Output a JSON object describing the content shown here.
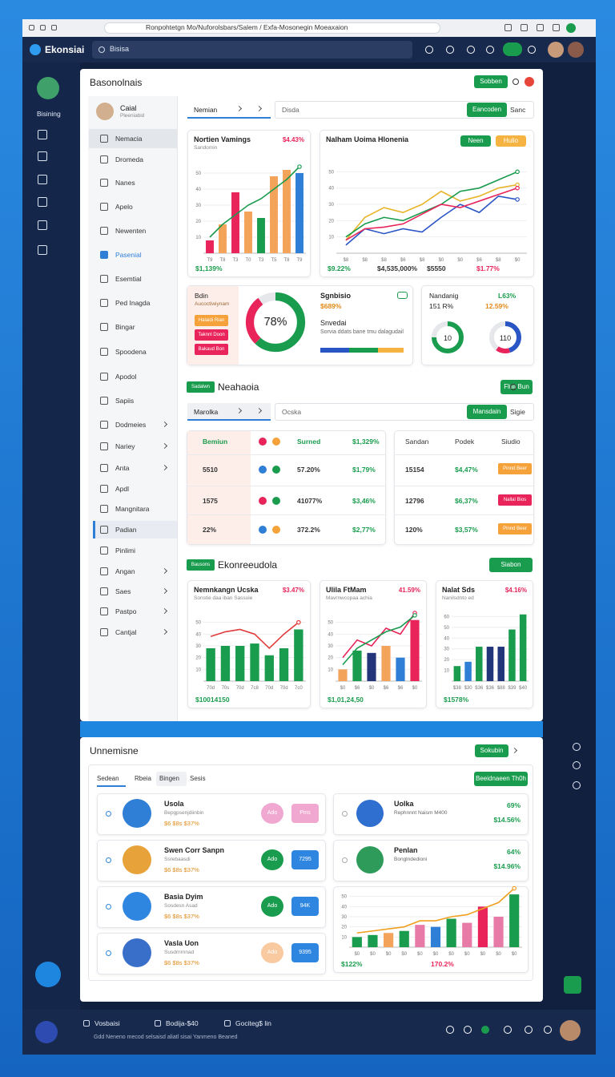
{
  "browser": {
    "url": "Ronpohtetgn Mo/Nuforolsbars/Salem / Exfa-Mosonegin Moeaxaion"
  },
  "app": {
    "logo": "Ekonsiai",
    "search": "Bisisa"
  },
  "sidebar": {
    "label": "Bisining"
  },
  "panel": {
    "title": "Basonolnais",
    "button": "Sobben",
    "user": {
      "name": "Caial",
      "role": "Pleeniabid"
    },
    "nav": [
      "Nemacia",
      "Dromeda",
      "Nanes",
      "Apelo",
      "Newenten",
      "Pasenial",
      "Esemtial",
      "Ped Inagda",
      "Bingar",
      "Spoodena",
      "Apodol",
      "Sapiis",
      "Dodmeies",
      "Nariey",
      "Anta",
      "Apdl",
      "Mangnitara",
      "Padian",
      "Pinlimi",
      "Angan",
      "Saes",
      "Pastpo",
      "Cantjal"
    ],
    "toolbar": {
      "select": "Nemian",
      "search": "Disda",
      "button": "Eancoden",
      "link": "Sanc"
    },
    "stats": {
      "title": "Bdin",
      "subtitle": "Aucoctiwiynam",
      "buttons": [
        "Halaidi Rian",
        "Taknnl Doon",
        "Bakaud Bon"
      ],
      "name": "Sgnbisio",
      "value": "$689%",
      "heading": "Snvedai",
      "text": "Sorvia ddats bane tmu dalagudail",
      "side_title": "Nandanig",
      "side_value": "L63%",
      "side_left": "151 R%",
      "side_right": "12.59%"
    },
    "section2": {
      "badge": "Sadalwn",
      "title": "Neahaoia",
      "button": "Fluit Bun",
      "select": "Marolka",
      "search": "Ocska",
      "action": "Mansdain",
      "link": "Sigie"
    },
    "table_left": {
      "header": [
        "Bemiun",
        "Surned",
        "$1,329%"
      ],
      "rows": [
        [
          "5510",
          "57.20%",
          "$1,79%"
        ],
        [
          "1575",
          "41077%",
          "$3,46%"
        ],
        [
          "22%",
          "372.2%",
          "$2,77%"
        ]
      ]
    },
    "table_right": {
      "header": [
        "Sandan",
        "Podek",
        "Siudio"
      ],
      "rows": [
        [
          "15154",
          "$4,47%",
          "Pinnd Beer"
        ],
        [
          "12796",
          "$6,37%",
          "Nallal Bios"
        ],
        [
          "120%",
          "$3,57%",
          "Pinnd Beer"
        ]
      ]
    },
    "section3": {
      "badge": "Bausons",
      "title": "Ekonreeudola",
      "button": "Siabon"
    }
  },
  "panel2": {
    "title": "Unnemisne",
    "button": "Sokubin",
    "tabs": [
      "Sedean",
      "Rbeia",
      "Bingen",
      "Sesis"
    ],
    "action": "Beeidnaeen Th0h",
    "items": [
      {
        "name": "Usola",
        "sub": "Bepgpsenjdiinbin",
        "price": "$6 $8s $37%",
        "b1": "Ado",
        "b2": "Pins"
      },
      {
        "name": "Swen Corr Sanpn",
        "sub": "Ssrebaasdi",
        "price": "$6 $8s $37%",
        "b1": "Ado",
        "b2": "7295"
      },
      {
        "name": "Basia Dyim",
        "sub": "Sosdesn Asad",
        "price": "$6 $8s $37%",
        "b1": "Ado",
        "b2": "94K"
      },
      {
        "name": "Vasla Uon",
        "sub": "Susdrnrnnad",
        "price": "$6 $8s $37%",
        "b1": "Ado",
        "b2": "9395"
      }
    ],
    "people": [
      {
        "name": "Uolka",
        "sub": "Rephnnnt Naism M400",
        "pct": "69%",
        "val": "$14.56%"
      },
      {
        "name": "Penlan",
        "sub": "Bonglndedioni",
        "pct": "64%",
        "val": "$14.96%"
      }
    ]
  },
  "footer": {
    "items": [
      "Vosbaisi",
      "Bodija-$40",
      "Gociteg$ lin"
    ],
    "text": "Gdd Neneno mecod selsaisd aliatl sisai Yanmeno Beaned"
  },
  "chart_data": [
    {
      "type": "bar",
      "title": "Nortien Vamings",
      "subtitle": "Sandomin",
      "badge": "$4.43%",
      "footer": [
        "$1,139%"
      ],
      "categories": [
        "T9",
        "T8",
        "T3",
        "T0",
        "T3",
        "T5",
        "T8",
        "T9"
      ],
      "ylim": [
        0,
        60
      ],
      "yticks": [
        10,
        20,
        30,
        40,
        50
      ],
      "grid": true,
      "series": [
        {
          "type": "bar",
          "colors": [
            "#e8245a",
            "#f4a35a",
            "#e8245a",
            "#f4a35a",
            "#1a9c4e",
            "#f4a35a",
            "#f4a35a",
            "#2f7fd6"
          ],
          "values": [
            8,
            18,
            38,
            26,
            22,
            48,
            52,
            50
          ]
        },
        {
          "type": "line",
          "color": "#1a9c4e",
          "values": [
            10,
            18,
            24,
            30,
            34,
            40,
            46,
            54
          ]
        }
      ]
    },
    {
      "type": "line",
      "title": "Nalham Uoima Hlonenia",
      "buttons": [
        "Neen",
        "Hulio"
      ],
      "footer": [
        "$9.22%",
        "$4,535,000%",
        "$5550",
        "$1.77%"
      ],
      "categories": [
        "$8",
        "$8",
        "$8",
        "$6",
        "$8",
        "$0",
        "$0",
        "$6",
        "$8",
        "$0"
      ],
      "ylim": [
        0,
        60
      ],
      "yticks": [
        10,
        20,
        30,
        40,
        50
      ],
      "grid": true,
      "series": [
        {
          "type": "line",
          "color": "#2a55c4",
          "values": [
            5,
            15,
            12,
            15,
            13,
            22,
            30,
            25,
            35,
            33
          ]
        },
        {
          "type": "line",
          "color": "#e8b42a",
          "values": [
            8,
            22,
            28,
            25,
            30,
            38,
            32,
            35,
            40,
            42
          ]
        },
        {
          "type": "line",
          "color": "#1a9c4e",
          "values": [
            10,
            18,
            22,
            20,
            25,
            30,
            38,
            40,
            45,
            50
          ]
        },
        {
          "type": "line",
          "color": "#e8245a",
          "values": [
            8,
            15,
            16,
            18,
            24,
            30,
            28,
            32,
            36,
            40
          ]
        }
      ]
    },
    {
      "type": "donut",
      "label": "78%",
      "values": [
        62,
        28,
        10
      ],
      "colors": [
        "#1a9c4e",
        "#e8245a",
        "#e5e7eb"
      ]
    },
    {
      "type": "donut",
      "label": "10",
      "values": [
        75,
        25
      ],
      "colors": [
        "#1a9c4e",
        "#e5e7eb"
      ]
    },
    {
      "type": "donut",
      "label": "110",
      "values": [
        45,
        15,
        40
      ],
      "colors": [
        "#2a55c4",
        "#e8245a",
        "#e5e7eb"
      ]
    },
    {
      "type": "bar",
      "title": "Nemnkangn Ucska",
      "subtitle": "Sonstie daa iban Sassuie",
      "badge": "$3.47%",
      "footer": [
        "$10014150"
      ],
      "categories": [
        "70d",
        "70s",
        "70d",
        "7c8",
        "70d",
        "70d",
        "7c0"
      ],
      "ylim": [
        0,
        60
      ],
      "yticks": [
        10,
        20,
        30,
        40,
        50
      ],
      "grid": true,
      "series": [
        {
          "type": "bar",
          "color": "#1a9c4e",
          "values": [
            28,
            30,
            30,
            32,
            22,
            28,
            44
          ]
        },
        {
          "type": "line",
          "color": "#e23a3a",
          "values": [
            38,
            42,
            44,
            40,
            28,
            40,
            50
          ]
        }
      ]
    },
    {
      "type": "bar",
      "title": "Ulila FtMam",
      "subtitle": "Mavrnwcopaa achia",
      "badge": "41.59%",
      "footer": [
        "$1,01,24,50"
      ],
      "categories": [
        "$0",
        "$6",
        "$0",
        "$6",
        "$6",
        "$0"
      ],
      "ylim": [
        0,
        60
      ],
      "yticks": [
        10,
        20,
        30,
        40,
        50
      ],
      "grid": true,
      "series": [
        {
          "type": "bar",
          "colors": [
            "#f4a35a",
            "#1a9c4e",
            "#23357a",
            "#f4a35a",
            "#2f7fd6",
            "#e8245a"
          ],
          "values": [
            10,
            26,
            24,
            30,
            20,
            52
          ]
        },
        {
          "type": "line",
          "color": "#e8245a",
          "values": [
            20,
            35,
            30,
            45,
            40,
            58
          ]
        },
        {
          "type": "line",
          "color": "#1a9c4e",
          "values": [
            14,
            28,
            35,
            42,
            46,
            56
          ]
        }
      ]
    },
    {
      "type": "bar",
      "title": "Nalat Sds",
      "subtitle": "Nanilsdnto ed",
      "badge": "$4.16%",
      "footer": [
        "$1578%"
      ],
      "categories": [
        "$38",
        "$30",
        "$36",
        "$36",
        "$88",
        "$39",
        "$40"
      ],
      "ylim": [
        0,
        70
      ],
      "yticks": [
        10,
        20,
        30,
        40,
        50,
        60
      ],
      "grid": true,
      "series": [
        {
          "type": "bar",
          "colors": [
            "#1a9c4e",
            "#2f7fd6",
            "#1a9c4e",
            "#23357a",
            "#23357a",
            "#1a9c4e",
            "#1a9c4e"
          ],
          "values": [
            14,
            18,
            32,
            32,
            32,
            48,
            62
          ]
        }
      ]
    },
    {
      "type": "bar",
      "footer": [
        "$122%",
        "170.2%"
      ],
      "categories": [
        "$0",
        "$0",
        "$0",
        "$0",
        "$0",
        "$0",
        "$0",
        "$0",
        "$0",
        "$0",
        "$0"
      ],
      "ylim": [
        0,
        60
      ],
      "yticks": [
        10,
        20,
        30,
        40,
        50
      ],
      "grid": true,
      "series": [
        {
          "type": "bar",
          "colors": [
            "#1a9c4e",
            "#1a9c4e",
            "#f4a35a",
            "#1a9c4e",
            "#e87aa8",
            "#2f7fd6",
            "#1a9c4e",
            "#e87aa8",
            "#e8245a",
            "#e87aa8",
            "#1a9c4e"
          ],
          "values": [
            10,
            12,
            14,
            16,
            22,
            20,
            28,
            24,
            40,
            30,
            52
          ]
        },
        {
          "type": "line",
          "color": "#f0a020",
          "values": [
            14,
            16,
            18,
            20,
            26,
            26,
            30,
            32,
            38,
            44,
            58
          ]
        }
      ]
    }
  ]
}
